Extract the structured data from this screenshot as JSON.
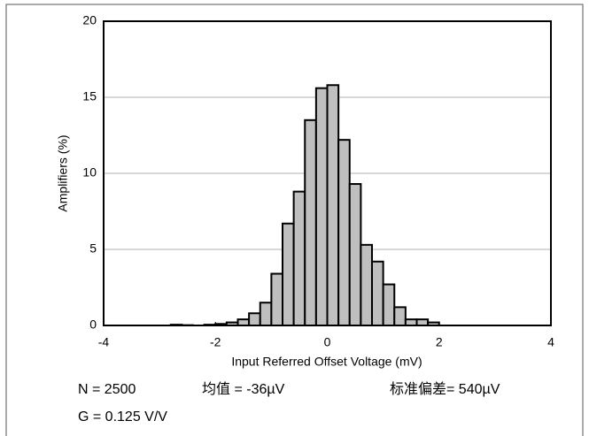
{
  "chart_data": {
    "type": "histogram",
    "xlabel": "Input Referred Offset Voltage (mV)",
    "ylabel": "Amplifiers (%)",
    "bins": [
      -2.8,
      -2.6,
      -2.4,
      -2.2,
      -2.0,
      -1.8,
      -1.6,
      -1.4,
      -1.2,
      -1.0,
      -0.8,
      -0.6,
      -0.4,
      -0.2,
      0,
      0.2,
      0.4,
      0.6,
      0.8,
      1.0,
      1.2,
      1.4,
      1.6,
      1.8,
      2.0
    ],
    "values": [
      0.05,
      0.02,
      0,
      0.05,
      0.1,
      0.2,
      0.4,
      0.8,
      1.5,
      3.4,
      6.7,
      8.8,
      13.5,
      15.6,
      15.8,
      12.2,
      9.3,
      5.3,
      4.2,
      2.7,
      1.2,
      0.4,
      0.4,
      0.2
    ],
    "color": "#bfbfbf",
    "xlim": [
      -4,
      4
    ],
    "ylim": [
      0,
      20
    ],
    "xticks": [
      -4,
      -2,
      0,
      2,
      4
    ],
    "yticks": [
      0,
      5,
      10,
      15,
      20
    ],
    "grid": true,
    "annotations": [
      "N = 2500",
      "均值 = ‐36µV",
      "标准偏差= 540µV",
      "G = 0.125 V/V"
    ]
  }
}
